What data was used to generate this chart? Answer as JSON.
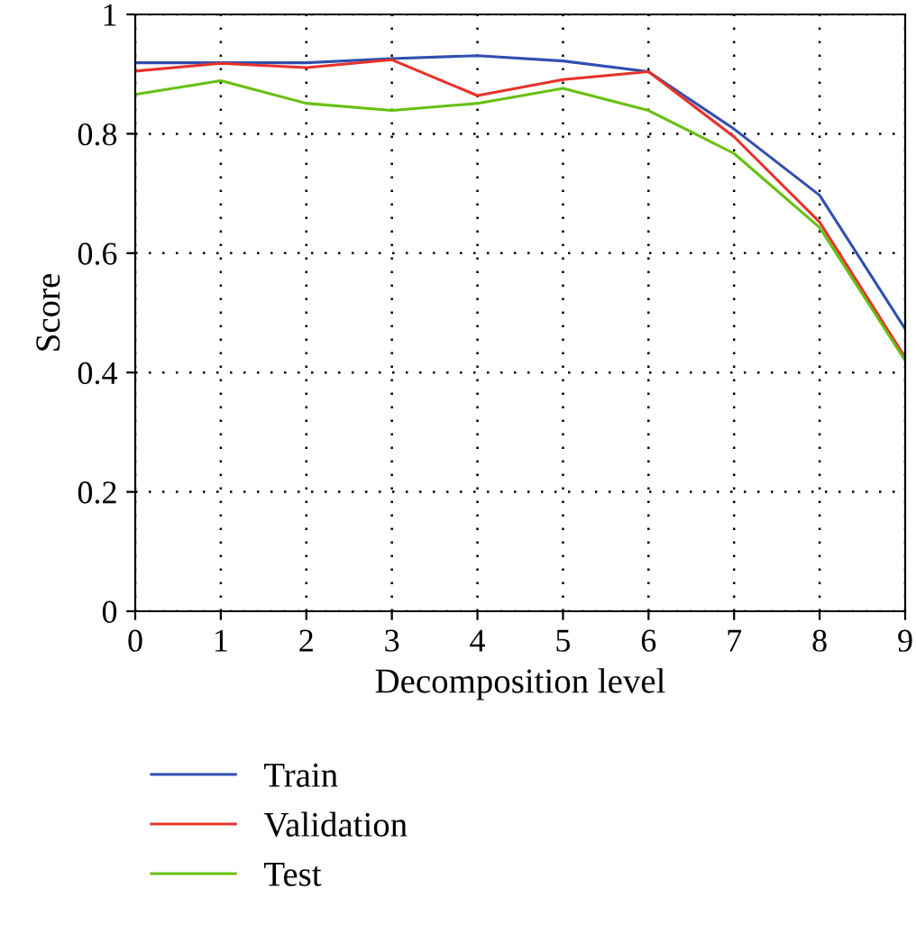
{
  "chart_data": {
    "type": "line",
    "xlabel": "Decomposition level",
    "ylabel": "Score",
    "x": [
      0,
      1,
      2,
      3,
      4,
      5,
      6,
      7,
      8,
      9
    ],
    "xlim": [
      0,
      9
    ],
    "xticks": [
      0,
      1,
      2,
      3,
      4,
      5,
      6,
      7,
      8,
      9
    ],
    "ylim": [
      0,
      1
    ],
    "yticks": [
      0,
      0.2,
      0.4,
      0.6,
      0.8,
      1
    ],
    "grid": true,
    "legend": "bottom",
    "marker": "none",
    "line_style": "solid",
    "series": [
      {
        "name": "Train",
        "color": "#2f4fb0",
        "values": [
          0.919,
          0.919,
          0.919,
          0.926,
          0.931,
          0.922,
          0.904,
          0.808,
          0.697,
          0.473
        ]
      },
      {
        "name": "Validation",
        "color": "#e8312a",
        "values": [
          0.905,
          0.918,
          0.911,
          0.924,
          0.864,
          0.891,
          0.904,
          0.795,
          0.652,
          0.425
        ]
      },
      {
        "name": "Test",
        "color": "#66c010",
        "values": [
          0.866,
          0.889,
          0.851,
          0.839,
          0.851,
          0.876,
          0.839,
          0.767,
          0.643,
          0.42
        ]
      }
    ]
  }
}
